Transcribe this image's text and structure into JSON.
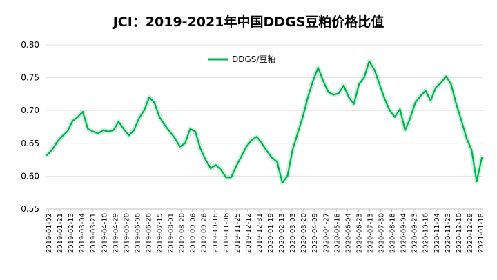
{
  "chart_data": {
    "type": "line",
    "title": "JCI：2019-2021年中国DDGS豆粕价格比值",
    "xlabel": "",
    "ylabel": "",
    "ylim": [
      0.55,
      0.8
    ],
    "yticks": [
      "0.80",
      "0.75",
      "0.70",
      "0.65",
      "0.60",
      "0.55"
    ],
    "grid": "horizontal",
    "legend_position": "top-center",
    "x_tick_labels": [
      "2019-01-02",
      "2019-01-21",
      "2019-02-13",
      "2019-03-04",
      "2019-03-21",
      "2019-04-10",
      "2019-04-29",
      "2019-05-20",
      "2019-06-06",
      "2019-06-26",
      "2019-07-15",
      "2019-08-01",
      "2019-08-20",
      "2019-09-06",
      "2019-09-26",
      "2019-10-18",
      "2019-11-06",
      "2019-11-25",
      "2019-12-12",
      "2019-12-31",
      "2020-01-19",
      "2020-02-13",
      "2020-03-03",
      "2020-03-20",
      "2020-04-09",
      "2020-04-27",
      "2020-05-18",
      "2020-06-04",
      "2020-06-23",
      "2020-07-13",
      "2020-07-30",
      "2020-08-18",
      "2020-09-04",
      "2020-09-23",
      "2020-10-16",
      "2020-11-04",
      "2020-11-23",
      "2020-12-10",
      "2020-12-29",
      "2021-01-18"
    ],
    "series": [
      {
        "name": "DDGS/豆粕",
        "color": "#00b050",
        "points": [
          [
            0,
            0.632
          ],
          [
            1,
            0.64
          ],
          [
            2,
            0.652
          ],
          [
            3,
            0.661
          ],
          [
            4,
            0.668
          ],
          [
            5,
            0.684
          ],
          [
            6,
            0.69
          ],
          [
            7,
            0.698
          ],
          [
            8,
            0.672
          ],
          [
            9,
            0.668
          ],
          [
            10,
            0.665
          ],
          [
            11,
            0.67
          ],
          [
            12,
            0.668
          ],
          [
            13,
            0.67
          ],
          [
            14,
            0.683
          ],
          [
            15,
            0.672
          ],
          [
            16,
            0.662
          ],
          [
            17,
            0.67
          ],
          [
            18,
            0.688
          ],
          [
            19,
            0.7
          ],
          [
            20,
            0.72
          ],
          [
            21,
            0.712
          ],
          [
            22,
            0.69
          ],
          [
            23,
            0.678
          ],
          [
            24,
            0.668
          ],
          [
            25,
            0.658
          ],
          [
            26,
            0.645
          ],
          [
            27,
            0.65
          ],
          [
            28,
            0.672
          ],
          [
            29,
            0.668
          ],
          [
            30,
            0.642
          ],
          [
            31,
            0.625
          ],
          [
            32,
            0.612
          ],
          [
            33,
            0.617
          ],
          [
            34,
            0.61
          ],
          [
            35,
            0.598
          ],
          [
            36,
            0.598
          ],
          [
            37,
            0.615
          ],
          [
            38,
            0.63
          ],
          [
            39,
            0.645
          ],
          [
            40,
            0.655
          ],
          [
            41,
            0.66
          ],
          [
            42,
            0.65
          ],
          [
            43,
            0.638
          ],
          [
            44,
            0.628
          ],
          [
            45,
            0.622
          ],
          [
            46,
            0.59
          ],
          [
            47,
            0.6
          ],
          [
            48,
            0.64
          ],
          [
            49,
            0.665
          ],
          [
            50,
            0.69
          ],
          [
            51,
            0.72
          ],
          [
            52,
            0.745
          ],
          [
            53,
            0.765
          ],
          [
            54,
            0.745
          ],
          [
            55,
            0.728
          ],
          [
            56,
            0.724
          ],
          [
            57,
            0.726
          ],
          [
            58,
            0.738
          ],
          [
            59,
            0.72
          ],
          [
            60,
            0.71
          ],
          [
            61,
            0.74
          ],
          [
            62,
            0.75
          ],
          [
            63,
            0.775
          ],
          [
            64,
            0.762
          ],
          [
            65,
            0.74
          ],
          [
            66,
            0.718
          ],
          [
            67,
            0.7
          ],
          [
            68,
            0.69
          ],
          [
            69,
            0.702
          ],
          [
            70,
            0.67
          ],
          [
            71,
            0.688
          ],
          [
            72,
            0.712
          ],
          [
            73,
            0.722
          ],
          [
            74,
            0.73
          ],
          [
            75,
            0.715
          ],
          [
            76,
            0.735
          ],
          [
            77,
            0.742
          ],
          [
            78,
            0.752
          ],
          [
            79,
            0.74
          ],
          [
            80,
            0.71
          ],
          [
            81,
            0.685
          ],
          [
            82,
            0.658
          ],
          [
            83,
            0.64
          ],
          [
            84,
            0.592
          ],
          [
            85,
            0.628
          ]
        ]
      }
    ]
  }
}
